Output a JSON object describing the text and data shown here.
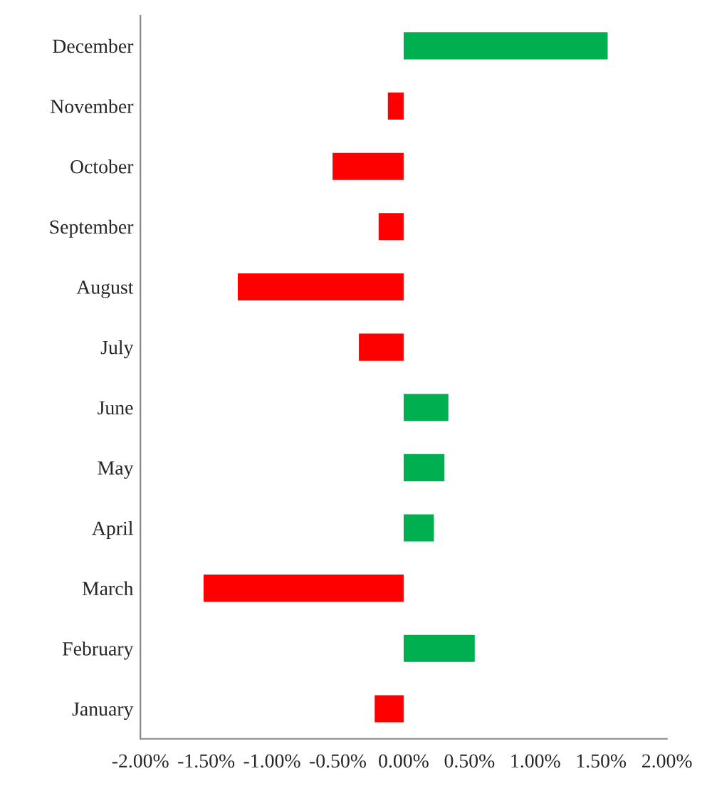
{
  "chart_data": {
    "type": "bar",
    "orientation": "horizontal",
    "categories": [
      "December",
      "November",
      "October",
      "September",
      "August",
      "July",
      "June",
      "May",
      "April",
      "March",
      "February",
      "January"
    ],
    "values": [
      1.55,
      -0.12,
      -0.54,
      -0.19,
      -1.26,
      -0.34,
      0.34,
      0.31,
      0.23,
      -1.52,
      0.54,
      -0.22
    ],
    "colors": [
      "#00b050",
      "#ff0000",
      "#ff0000",
      "#ff0000",
      "#ff0000",
      "#ff0000",
      "#00b050",
      "#00b050",
      "#00b050",
      "#ff0000",
      "#00b050",
      "#ff0000"
    ],
    "xlim": [
      -2.0,
      2.0
    ],
    "xticks": [
      {
        "value": -2.0,
        "label": "-2.00%"
      },
      {
        "value": -1.5,
        "label": "-1.50%"
      },
      {
        "value": -1.0,
        "label": "-1.00%"
      },
      {
        "value": -0.5,
        "label": "-0.50%"
      },
      {
        "value": 0.0,
        "label": "0.00%"
      },
      {
        "value": 0.5,
        "label": "0.50%"
      },
      {
        "value": 1.0,
        "label": "1.00%"
      },
      {
        "value": 1.5,
        "label": "1.50%"
      },
      {
        "value": 2.0,
        "label": "2.00%"
      }
    ],
    "grid": false,
    "legend": false
  }
}
